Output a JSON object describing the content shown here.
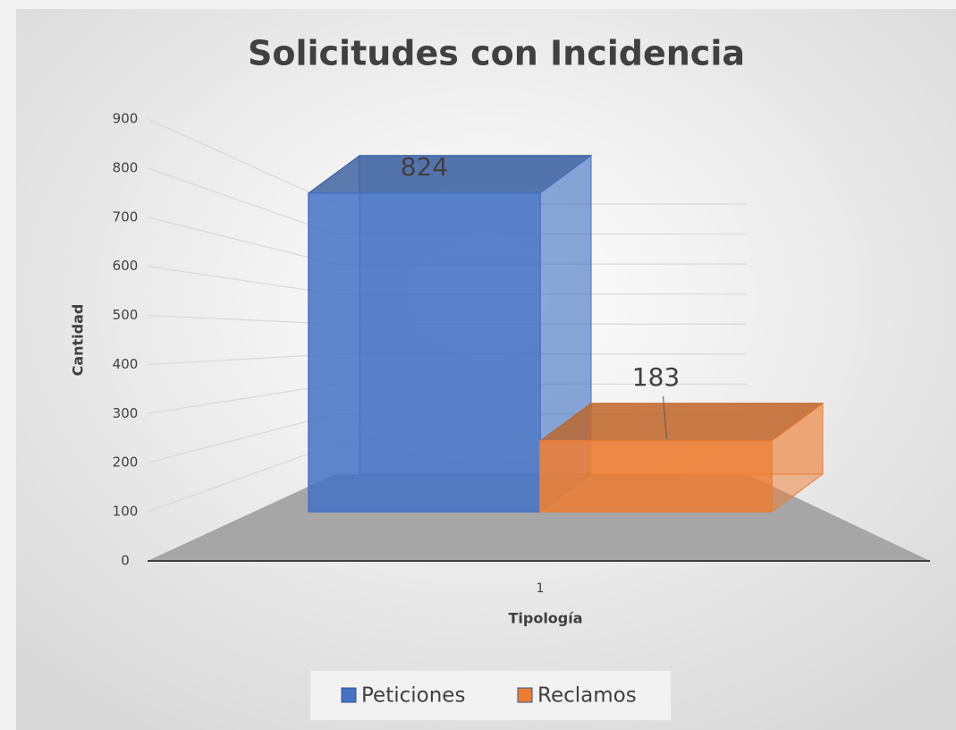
{
  "chart_data": {
    "type": "bar3d",
    "title": "Solicitudes con Incidencia",
    "categories": [
      "1"
    ],
    "series": [
      {
        "name": "Peticiones",
        "color": "#4472c4",
        "values": [
          824
        ]
      },
      {
        "name": "Reclamos",
        "color": "#ed7d31",
        "values": [
          183
        ]
      }
    ],
    "ylim": [
      0,
      900
    ],
    "yticks": [
      0,
      100,
      200,
      300,
      400,
      500,
      600,
      700,
      800,
      900
    ],
    "xlabel": "Tipología",
    "ylabel": "Cantidad",
    "grid": true,
    "legend": "bottom"
  }
}
